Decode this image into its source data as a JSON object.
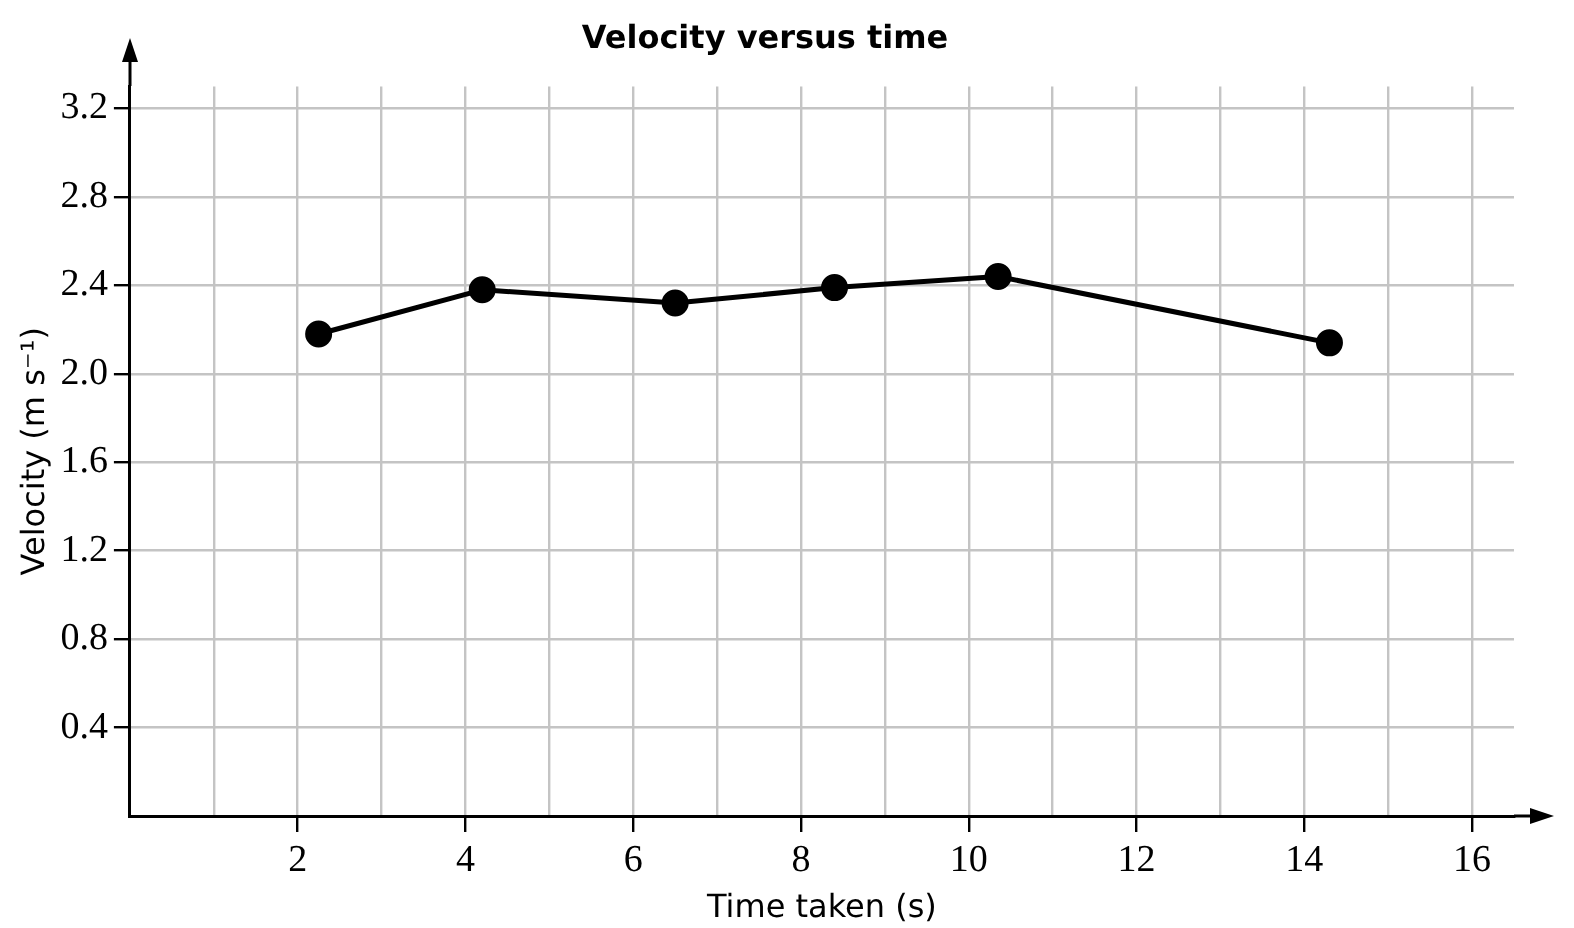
{
  "chart_data": {
    "type": "line",
    "title": "Velocity versus time",
    "xlabel": "Time taken (s)",
    "ylabel": "Velocity (m s⁻¹)",
    "x": [
      2.25,
      4.2,
      6.5,
      8.4,
      10.35,
      14.3
    ],
    "series": [
      {
        "color": "#000000",
        "values": [
          2.18,
          2.38,
          2.32,
          2.39,
          2.44,
          2.14
        ]
      }
    ],
    "xlim": [
      0,
      16.5
    ],
    "ylim": [
      0,
      3.3
    ],
    "xticks": [
      {
        "value": 1,
        "label": null
      },
      2,
      {
        "value": 3,
        "label": null
      },
      4,
      {
        "value": 5,
        "label": null
      },
      6,
      {
        "value": 7,
        "label": null
      },
      8,
      {
        "value": 9,
        "label": null
      },
      10,
      {
        "value": 11,
        "label": null
      },
      12,
      {
        "value": 13,
        "label": null
      },
      14,
      {
        "value": 15,
        "label": null
      },
      16
    ],
    "yticks": [
      {
        "value": 0.4,
        "label": "0.4"
      },
      {
        "value": 0.8,
        "label": "0.8"
      },
      {
        "value": 1.2,
        "label": "1.2"
      },
      {
        "value": 1.6,
        "label": "1.6"
      },
      {
        "value": 2.0,
        "label": "2.0"
      },
      {
        "value": 2.4,
        "label": "2.4"
      },
      {
        "value": 2.8,
        "label": "2.8"
      },
      {
        "value": 3.2,
        "label": "3.2"
      }
    ],
    "grid": true,
    "legend": false,
    "marker": "circle",
    "line_style": "solid"
  }
}
